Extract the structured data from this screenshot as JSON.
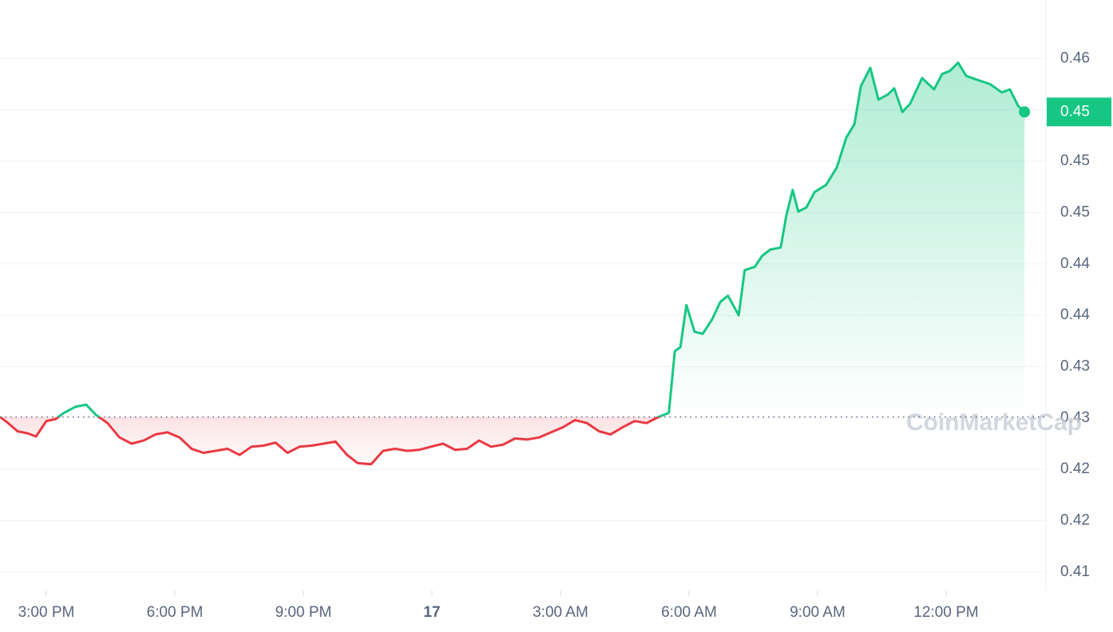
{
  "chart_data": {
    "type": "line",
    "watermark": "CoinMarketCap",
    "x": [
      13.92,
      14.11,
      14.33,
      14.57,
      14.76,
      15.0,
      15.22,
      15.41,
      15.69,
      15.93,
      16.16,
      16.43,
      16.71,
      16.99,
      17.27,
      17.55,
      17.83,
      18.11,
      18.39,
      18.67,
      18.95,
      19.23,
      19.51,
      19.79,
      20.07,
      20.35,
      20.63,
      20.91,
      21.19,
      21.47,
      21.75,
      22.02,
      22.27,
      22.58,
      22.86,
      23.14,
      23.42,
      23.7,
      23.98,
      24.26,
      24.54,
      24.82,
      25.1,
      25.38,
      25.66,
      25.94,
      26.22,
      26.5,
      26.78,
      27.06,
      27.34,
      27.62,
      27.9,
      28.17,
      28.45,
      28.73,
      29.01,
      29.29,
      29.53,
      29.67,
      29.8,
      29.94,
      30.13,
      30.32,
      30.54,
      30.73,
      30.91,
      31.16,
      31.3,
      31.53,
      31.71,
      31.9,
      32.14,
      32.27,
      32.42,
      32.55,
      32.74,
      32.93,
      33.2,
      33.45,
      33.67,
      33.86,
      34.01,
      34.23,
      34.42,
      34.64,
      34.79,
      34.98,
      35.16,
      35.44,
      35.72,
      35.91,
      36.09,
      36.28,
      36.47,
      36.75,
      37.03,
      37.3,
      37.49,
      37.68,
      37.83
    ],
    "values": [
      0.4251,
      0.4245,
      0.4237,
      0.4235,
      0.4232,
      0.4247,
      0.4249,
      0.4255,
      0.4261,
      0.4263,
      0.4253,
      0.4245,
      0.4231,
      0.4225,
      0.4228,
      0.4234,
      0.4236,
      0.4231,
      0.422,
      0.4216,
      0.4218,
      0.422,
      0.4214,
      0.4222,
      0.4223,
      0.4226,
      0.4216,
      0.4222,
      0.4223,
      0.4225,
      0.4227,
      0.4214,
      0.4206,
      0.4205,
      0.4218,
      0.422,
      0.4218,
      0.4219,
      0.4222,
      0.4225,
      0.4219,
      0.422,
      0.4228,
      0.4222,
      0.4224,
      0.423,
      0.4229,
      0.4231,
      0.4236,
      0.4241,
      0.4248,
      0.4245,
      0.4237,
      0.4234,
      0.4241,
      0.4247,
      0.4245,
      0.4251,
      0.4255,
      0.4315,
      0.4319,
      0.436,
      0.4334,
      0.4332,
      0.4346,
      0.4363,
      0.4369,
      0.435,
      0.4394,
      0.4397,
      0.4408,
      0.4414,
      0.4416,
      0.4447,
      0.4472,
      0.4451,
      0.4455,
      0.447,
      0.4477,
      0.4494,
      0.4523,
      0.4536,
      0.4573,
      0.4591,
      0.456,
      0.4565,
      0.4571,
      0.4548,
      0.4556,
      0.4581,
      0.457,
      0.4585,
      0.4588,
      0.4596,
      0.4583,
      0.4579,
      0.4575,
      0.4567,
      0.457,
      0.4554,
      0.4548
    ],
    "reference": 0.4251,
    "up_color": "#16c784",
    "down_color": "#ea3943",
    "current_price": {
      "value": 0.4548,
      "label": "0.45"
    },
    "xlim": [
      13.92,
      38.33
    ],
    "xticks": [
      {
        "value": 15,
        "label": "3:00 PM"
      },
      {
        "value": 18,
        "label": "6:00 PM"
      },
      {
        "value": 21,
        "label": "9:00 PM"
      },
      {
        "value": 24,
        "label": "17"
      },
      {
        "value": 27,
        "label": "3:00 AM"
      },
      {
        "value": 30,
        "label": "6:00 AM"
      },
      {
        "value": 33,
        "label": "9:00 AM"
      },
      {
        "value": 36,
        "label": "12:00 PM"
      }
    ],
    "ylim": [
      0.4082,
      0.4657
    ],
    "yticks": [
      {
        "value": 0.41,
        "label": "0.41"
      },
      {
        "value": 0.415,
        "label": "0.42"
      },
      {
        "value": 0.42,
        "label": "0.42"
      },
      {
        "value": 0.425,
        "label": "0.43"
      },
      {
        "value": 0.43,
        "label": "0.43"
      },
      {
        "value": 0.435,
        "label": "0.44"
      },
      {
        "value": 0.44,
        "label": "0.44"
      },
      {
        "value": 0.445,
        "label": "0.45"
      },
      {
        "value": 0.45,
        "label": "0.45"
      },
      {
        "value": 0.455,
        "label": "0.45"
      },
      {
        "value": 0.46,
        "label": "0.46"
      }
    ],
    "grid": true
  }
}
